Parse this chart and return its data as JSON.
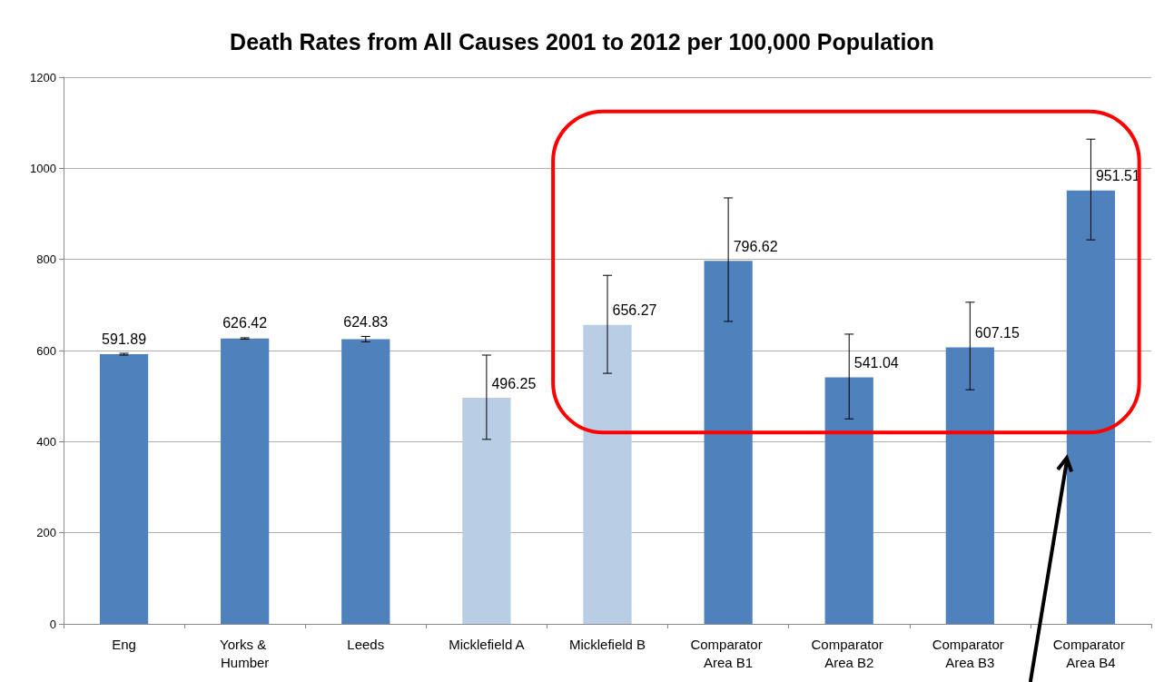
{
  "chart_data": {
    "type": "bar",
    "title": "Death Rates from All Causes 2001 to 2012 per 100,000 Population",
    "categories": [
      "Eng",
      "Yorks & Humber",
      "Leeds",
      "Micklefield A",
      "Micklefield B",
      "Comparator Area B1",
      "Comparator Area B2",
      "Comparator Area B3",
      "Comparator Area B4"
    ],
    "values": [
      591.89,
      626.42,
      624.83,
      496.25,
      656.27,
      796.62,
      541.04,
      607.15,
      951.51
    ],
    "colors": [
      "#4f81bd",
      "#4f81bd",
      "#4f81bd",
      "#b9cde5",
      "#b9cde5",
      "#4f81bd",
      "#4f81bd",
      "#4f81bd",
      "#4f81bd"
    ],
    "errors": [
      [
        590,
        594
      ],
      [
        625,
        628
      ],
      [
        619,
        631
      ],
      [
        405,
        590
      ],
      [
        550,
        765
      ],
      [
        664,
        935
      ],
      [
        450,
        636
      ],
      [
        514,
        706
      ],
      [
        843,
        1064
      ]
    ],
    "data_labels": true,
    "ylim": [
      0,
      1200
    ],
    "yticks": [
      0,
      200,
      400,
      600,
      800,
      1000,
      1200
    ],
    "grid": "y"
  }
}
